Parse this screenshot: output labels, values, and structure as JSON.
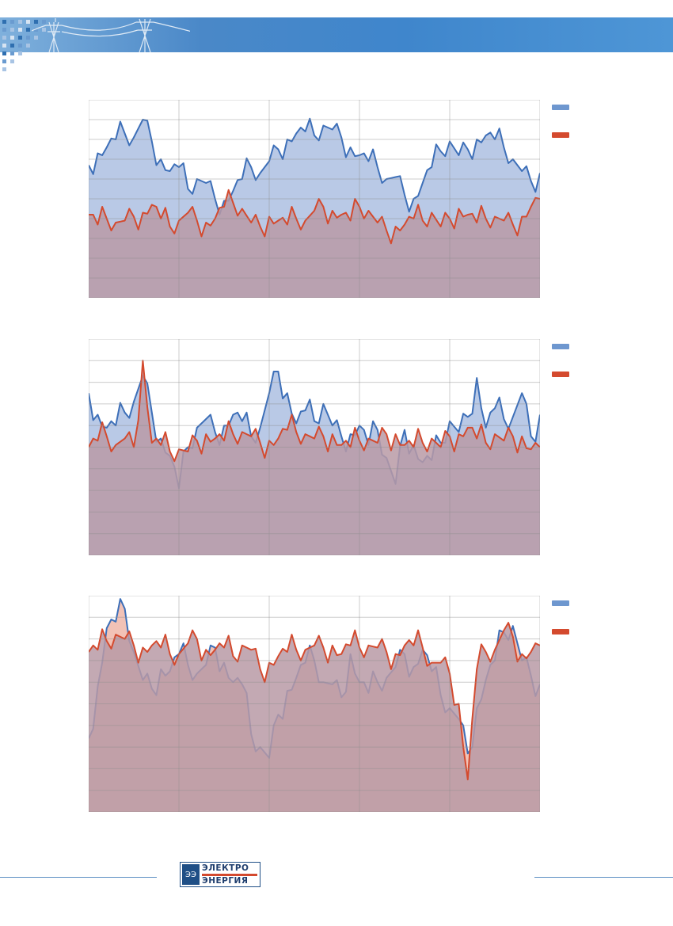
{
  "header": {
    "band_color": "#4a88c8",
    "icons": [
      "dot-grid-icon",
      "power-tower-icon"
    ]
  },
  "logo": {
    "line1": "ЭЛЕКТРО",
    "line2": "ЭНЕРГИЯ",
    "mark_icon": "power-grid-logo-icon",
    "color": "#1f4f86",
    "strip_color": "#d3492e"
  },
  "chart_data": [
    {
      "type": "area",
      "title": "",
      "xlabel": "",
      "ylabel": "",
      "grid": true,
      "legend": "right",
      "x_range": [
        0,
        100
      ],
      "y_range": [
        0,
        10
      ],
      "series": [
        {
          "color": "#3d6fb8",
          "fill": "#b9c9e6",
          "values": [
            6.7,
            7.3,
            7.6,
            8.0,
            8.3,
            8.1,
            9.0,
            7.9,
            7.0,
            6.4,
            6.6,
            5.5,
            6.0,
            5.8,
            5.0,
            4.9,
            5.4,
            6.0,
            6.6,
            6.3,
            6.9,
            7.5,
            8.0,
            8.3,
            8.4,
            8.2,
            8.7,
            8.5,
            8.1,
            7.6,
            7.2,
            6.9,
            6.6,
            6.0,
            6.1,
            5.2,
            5.0,
            5.8,
            6.6,
            7.4,
            7.9,
            7.2,
            7.5,
            8.0,
            8.2,
            8.0,
            7.6,
            7.0,
            6.4,
            5.9,
            6.3
          ]
        },
        {
          "color": "#d44a2e",
          "fill": "#b89aa6",
          "values": [
            4.2,
            3.7,
            4.0,
            3.8,
            3.9,
            4.1,
            4.3,
            4.7,
            4.0,
            3.6,
            3.9,
            4.3,
            3.9,
            3.8,
            4.0,
            4.6,
            4.8,
            4.5,
            3.8,
            3.6,
            4.1,
            3.9,
            3.7,
            4.0,
            3.9,
            4.4,
            4.6,
            4.4,
            4.2,
            3.9,
            4.6,
            4.4,
            3.8,
            3.4,
            3.6,
            3.7,
            4.0,
            3.9,
            4.3,
            3.6,
            4.0,
            4.5,
            4.2,
            3.8,
            4.0,
            4.1,
            3.9,
            3.7,
            4.1,
            4.6,
            5.0
          ]
        }
      ]
    },
    {
      "type": "area",
      "title": "",
      "xlabel": "",
      "ylabel": "",
      "grid": true,
      "legend": "right",
      "x_range": [
        0,
        100
      ],
      "y_range": [
        0,
        10
      ],
      "series": [
        {
          "color": "#3d6fb8",
          "fill": "#b9c9e6",
          "values": [
            7.5,
            6.5,
            5.9,
            6.0,
            6.6,
            7.1,
            8.3,
            6.6,
            5.4,
            4.6,
            3.1,
            5.0,
            5.9,
            6.3,
            5.7,
            6.0,
            6.5,
            6.2,
            5.5,
            5.9,
            7.5,
            8.5,
            7.5,
            6.1,
            6.7,
            6.2,
            7.0,
            6.0,
            5.5,
            5.6,
            6.0,
            5.1,
            5.8,
            4.5,
            3.3,
            5.8,
            5.1,
            4.3,
            4.4,
            5.2,
            6.2,
            5.7,
            6.4,
            8.2,
            5.9,
            6.8,
            6.3,
            6.4,
            7.5,
            5.5,
            6.5
          ]
        },
        {
          "color": "#d44a2e",
          "fill": "#b89aa6",
          "values": [
            5.0,
            5.3,
            5.5,
            5.1,
            5.4,
            5.0,
            9.0,
            5.2,
            5.1,
            4.8,
            4.9,
            4.8,
            5.3,
            5.6,
            5.4,
            5.3,
            5.6,
            5.7,
            5.5,
            5.2,
            5.3,
            5.4,
            5.8,
            5.7,
            5.6,
            5.4,
            5.5,
            5.6,
            5.1,
            5.0,
            5.3,
            5.4,
            5.2,
            5.6,
            5.6,
            5.1,
            5.0,
            5.2,
            5.4,
            5.0,
            5.5,
            5.6,
            5.9,
            5.4,
            5.2,
            5.6,
            5.3,
            5.5,
            5.5,
            4.9,
            5.0
          ]
        }
      ]
    },
    {
      "type": "area",
      "title": "",
      "xlabel": "",
      "ylabel": "",
      "grid": true,
      "legend": "right",
      "x_range": [
        0,
        100
      ],
      "y_range": [
        0,
        10
      ],
      "series": [
        {
          "color": "#3d6fb8",
          "fill": "#f2c2b6",
          "values": [
            3.4,
            5.8,
            8.5,
            8.8,
            9.4,
            7.4,
            6.1,
            5.7,
            6.6,
            6.5,
            7.3,
            6.8,
            6.4,
            6.8,
            7.6,
            6.9,
            6.0,
            5.9,
            3.6,
            3.0,
            2.5,
            4.5,
            5.6,
            6.2,
            6.9,
            7.0,
            6.0,
            5.9,
            5.3,
            7.3,
            6.0,
            5.5,
            6.0,
            6.2,
            6.7,
            7.3,
            6.7,
            7.5,
            6.5,
            5.4,
            4.8,
            4.3,
            2.7,
            4.8,
            6.1,
            7.0,
            8.3,
            8.6,
            7.0,
            6.3,
            5.9
          ]
        },
        {
          "color": "#d44a2e",
          "fill": "#b89aa6",
          "values": [
            7.4,
            7.5,
            7.9,
            8.2,
            8.0,
            7.7,
            7.6,
            7.7,
            7.6,
            7.3,
            7.3,
            7.8,
            8.0,
            7.5,
            7.5,
            7.6,
            7.2,
            7.7,
            7.5,
            6.6,
            6.9,
            7.2,
            7.4,
            7.5,
            7.5,
            7.7,
            7.6,
            7.7,
            7.3,
            7.7,
            7.6,
            7.7,
            7.6,
            7.4,
            7.3,
            7.7,
            7.7,
            7.6,
            6.9,
            6.9,
            6.4,
            5.0,
            1.5,
            6.6,
            7.4,
            7.5,
            8.4,
            8.1,
            7.3,
            7.4,
            7.7
          ]
        }
      ]
    }
  ]
}
